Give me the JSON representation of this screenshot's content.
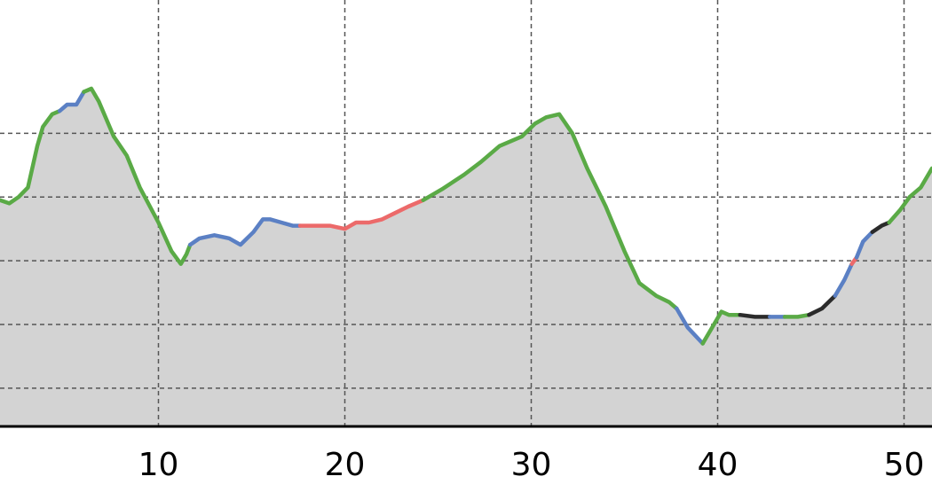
{
  "chart_data": {
    "type": "area",
    "xlim": [
      1.5,
      51.5
    ],
    "ylim": [
      0,
      5.3
    ],
    "x_ticks": [
      10,
      20,
      30,
      40,
      50
    ],
    "x_tick_labels": [
      "10",
      "20",
      "30",
      "40",
      "50"
    ],
    "y_gridlines": [
      0.6,
      1.6,
      2.6,
      3.6,
      4.6
    ],
    "grid": true,
    "fill_color": "#d3d3d3",
    "segment_colors": {
      "green": "#5aaa46",
      "blue": "#5b80c4",
      "red": "#ec6a6a",
      "black": "#2b2b2b"
    },
    "series": [
      {
        "segments": [
          {
            "color": "green",
            "x": [
              1.5,
              2.0,
              2.5,
              3.0,
              3.5,
              3.8,
              4.3,
              4.7
            ],
            "y": [
              3.55,
              3.5,
              3.6,
              3.75,
              4.4,
              4.7,
              4.9,
              4.95
            ]
          },
          {
            "color": "blue",
            "x": [
              4.7,
              5.1,
              5.6,
              6.0
            ],
            "y": [
              4.95,
              5.05,
              5.05,
              5.25
            ]
          },
          {
            "color": "green",
            "x": [
              6.0,
              6.4,
              6.8,
              7.6,
              8.3,
              9.0,
              10.0,
              10.7,
              11.2,
              11.5,
              11.7
            ],
            "y": [
              5.25,
              5.3,
              5.1,
              4.55,
              4.25,
              3.75,
              3.2,
              2.75,
              2.55,
              2.7,
              2.85
            ]
          },
          {
            "color": "blue",
            "x": [
              11.7,
              12.2,
              13.0,
              13.8,
              14.4,
              15.1,
              15.6,
              16.0,
              16.6,
              17.2,
              17.6
            ],
            "y": [
              2.85,
              2.95,
              3.0,
              2.95,
              2.85,
              3.05,
              3.25,
              3.25,
              3.2,
              3.15,
              3.15
            ]
          },
          {
            "color": "red",
            "x": [
              17.6,
              18.4,
              19.2,
              20.0,
              20.6,
              21.3,
              22.0,
              22.7,
              23.4,
              24.2
            ],
            "y": [
              3.15,
              3.15,
              3.15,
              3.1,
              3.2,
              3.2,
              3.25,
              3.35,
              3.45,
              3.55
            ]
          },
          {
            "color": "green",
            "x": [
              24.2,
              25.2,
              26.4,
              27.3,
              28.3,
              29.5,
              30.2,
              30.8,
              31.5,
              32.2,
              33.0,
              34.0,
              35.0,
              35.8,
              36.7,
              37.4,
              37.8
            ],
            "y": [
              3.55,
              3.72,
              3.95,
              4.15,
              4.4,
              4.55,
              4.75,
              4.85,
              4.9,
              4.6,
              4.05,
              3.45,
              2.75,
              2.25,
              2.05,
              1.95,
              1.85
            ]
          },
          {
            "color": "blue",
            "x": [
              37.8,
              38.4,
              39.2
            ],
            "y": [
              1.85,
              1.55,
              1.3
            ]
          },
          {
            "color": "green",
            "x": [
              39.2,
              39.7,
              40.2,
              40.6,
              41.2
            ],
            "y": [
              1.3,
              1.55,
              1.8,
              1.75,
              1.75
            ]
          },
          {
            "color": "black",
            "x": [
              41.2,
              42.0,
              42.8
            ],
            "y": [
              1.75,
              1.72,
              1.72
            ]
          },
          {
            "color": "blue",
            "x": [
              42.8,
              43.6
            ],
            "y": [
              1.72,
              1.72
            ]
          },
          {
            "color": "green",
            "x": [
              43.6,
              44.3,
              44.9
            ],
            "y": [
              1.72,
              1.72,
              1.75
            ]
          },
          {
            "color": "black",
            "x": [
              44.9,
              45.6,
              46.3
            ],
            "y": [
              1.75,
              1.85,
              2.05
            ]
          },
          {
            "color": "blue",
            "x": [
              46.3,
              46.8,
              47.2
            ],
            "y": [
              2.05,
              2.3,
              2.55
            ]
          },
          {
            "color": "red",
            "x": [
              47.2,
              47.45
            ],
            "y": [
              2.55,
              2.65
            ]
          },
          {
            "color": "blue",
            "x": [
              47.45,
              47.8,
              48.3
            ],
            "y": [
              2.65,
              2.9,
              3.05
            ]
          },
          {
            "color": "black",
            "x": [
              48.3,
              48.8,
              49.2
            ],
            "y": [
              3.05,
              3.15,
              3.2
            ]
          },
          {
            "color": "green",
            "x": [
              49.2,
              49.8,
              50.3,
              50.9,
              51.5
            ],
            "y": [
              3.2,
              3.4,
              3.6,
              3.75,
              4.05
            ]
          }
        ]
      }
    ]
  }
}
